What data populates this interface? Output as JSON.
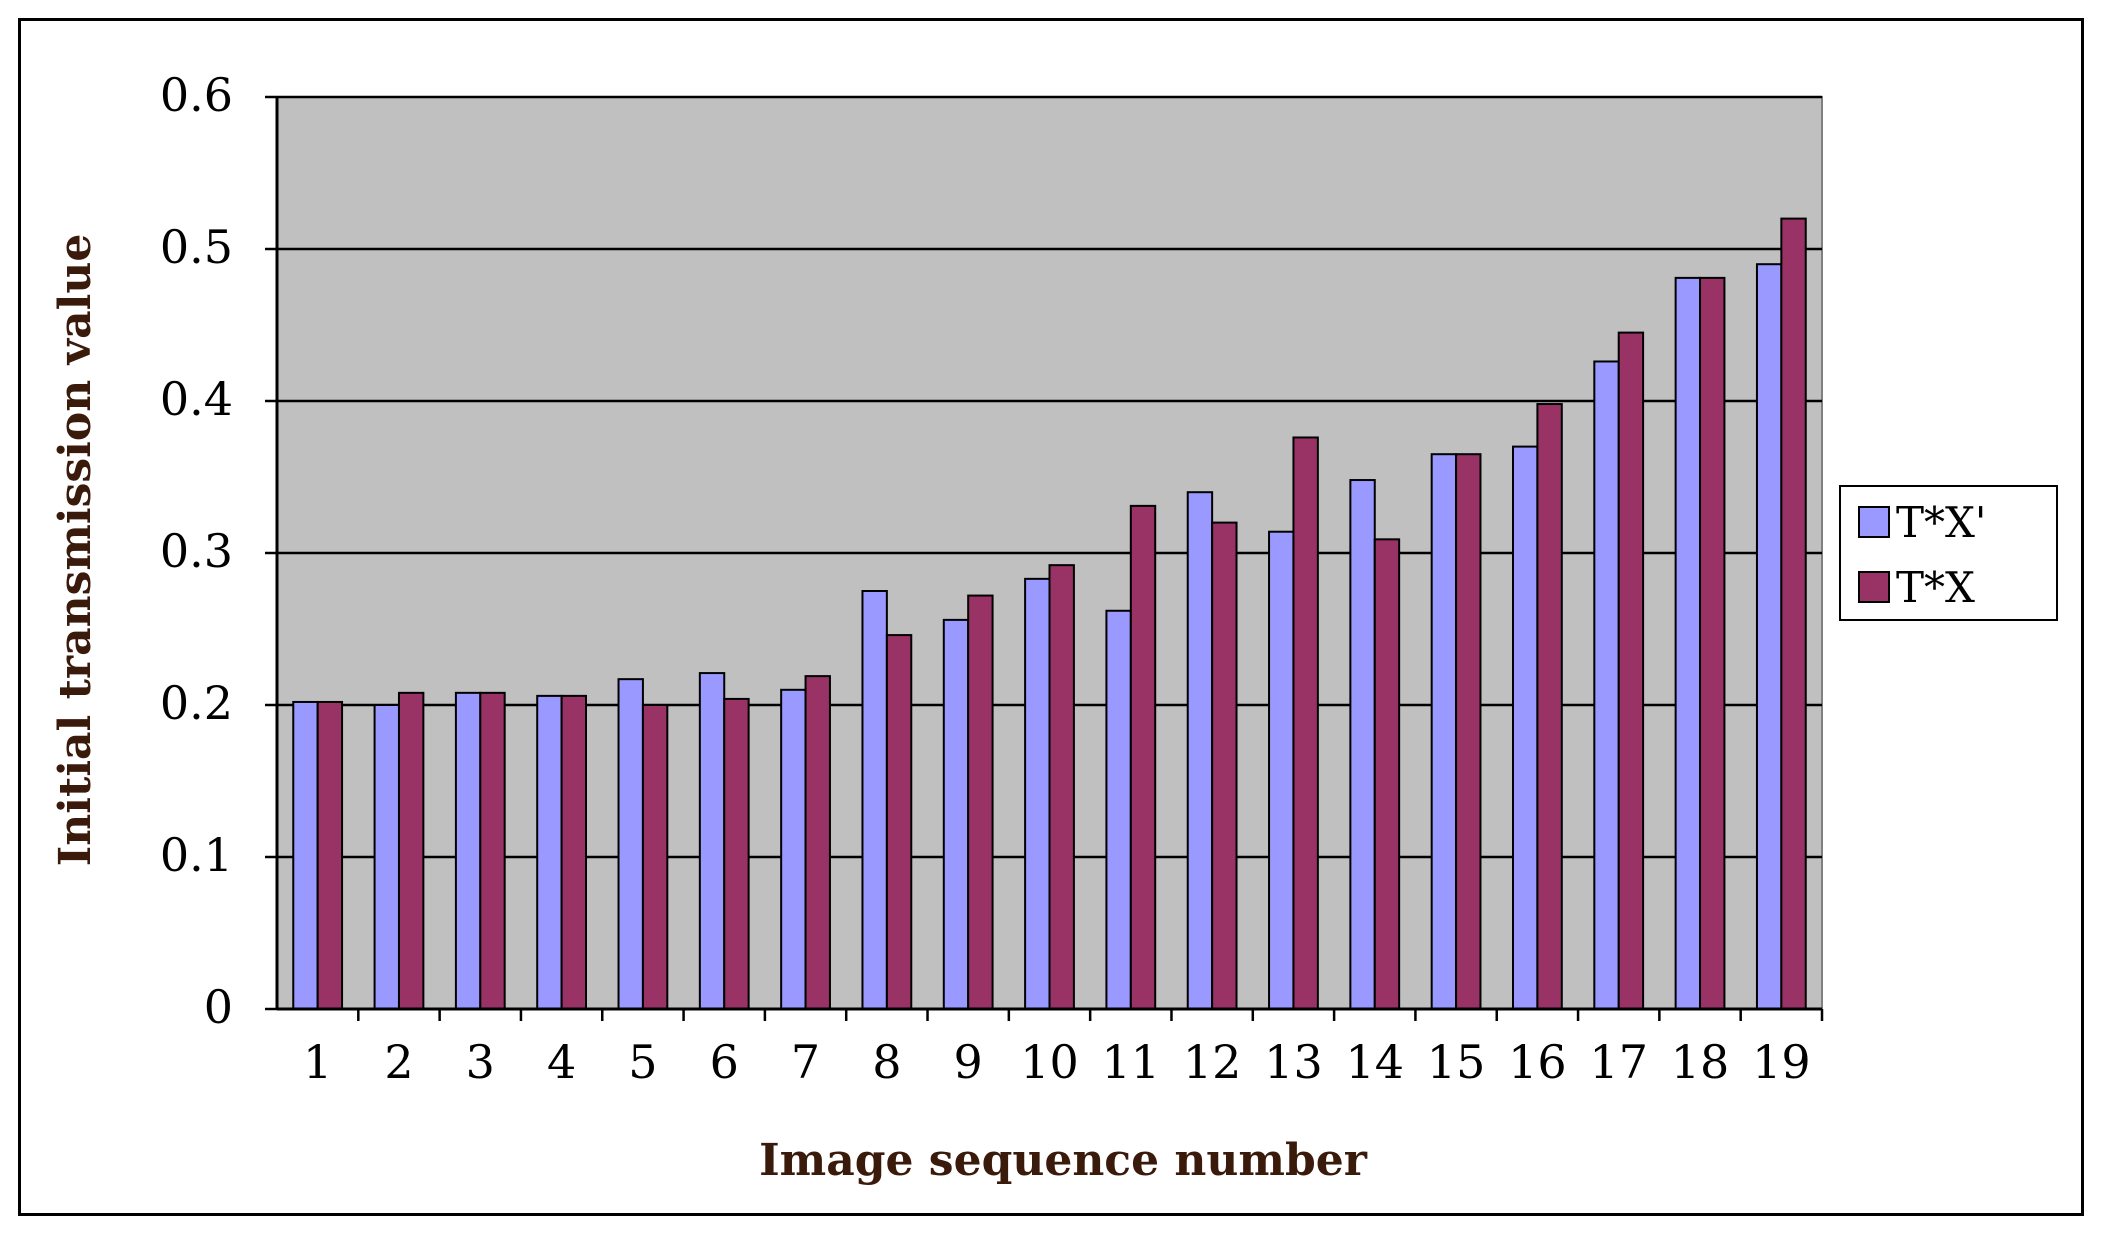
{
  "chart_data": {
    "type": "bar",
    "title": "",
    "xlabel": "Image sequence number",
    "ylabel": "Initial transmission value",
    "categories": [
      "1",
      "2",
      "3",
      "4",
      "5",
      "6",
      "7",
      "8",
      "9",
      "10",
      "11",
      "12",
      "13",
      "14",
      "15",
      "16",
      "17",
      "18",
      "19"
    ],
    "series": [
      {
        "name": "T*X'",
        "color": "#9999FF",
        "values": [
          0.202,
          0.2,
          0.208,
          0.206,
          0.217,
          0.221,
          0.21,
          0.275,
          0.256,
          0.283,
          0.262,
          0.34,
          0.314,
          0.348,
          0.365,
          0.37,
          0.426,
          0.481,
          0.49
        ]
      },
      {
        "name": "T*X",
        "color": "#993366",
        "values": [
          0.202,
          0.208,
          0.208,
          0.206,
          0.2,
          0.204,
          0.219,
          0.246,
          0.272,
          0.292,
          0.331,
          0.32,
          0.376,
          0.309,
          0.365,
          0.398,
          0.445,
          0.481,
          0.52
        ]
      }
    ],
    "ylim": [
      0,
      0.6
    ],
    "yticks": [
      "0",
      "0.1",
      "0.2",
      "0.3",
      "0.4",
      "0.5",
      "0.6"
    ],
    "grid": true,
    "plot_background": "#C0C0C0",
    "axis_title_color": "#3A1A0A",
    "legend_position": "right"
  }
}
